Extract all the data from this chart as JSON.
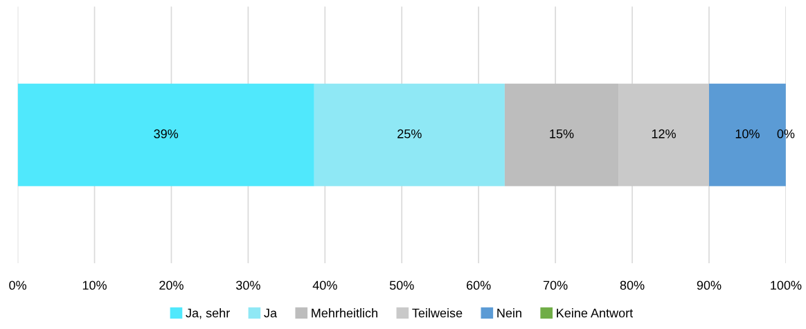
{
  "chart_data": {
    "type": "bar",
    "orientation": "horizontal",
    "stacked": true,
    "categories": [
      null
    ],
    "series": [
      {
        "name": "Ja, sehr",
        "color": "#50e8fc",
        "values": [
          38.6
        ],
        "value_labels": [
          "39%"
        ]
      },
      {
        "name": "Ja",
        "color": "#8fe8f5",
        "values": [
          24.8
        ],
        "value_labels": [
          "25%"
        ]
      },
      {
        "name": "Mehrheitlich",
        "color": "#bdbdbd",
        "values": [
          14.8
        ],
        "value_labels": [
          "15%"
        ]
      },
      {
        "name": "Teilweise",
        "color": "#c9c9c9",
        "values": [
          11.8
        ],
        "value_labels": [
          "12%"
        ]
      },
      {
        "name": "Nein",
        "color": "#5b9bd5",
        "values": [
          10.0
        ],
        "value_labels": [
          "10%"
        ]
      },
      {
        "name": "Keine Antwort",
        "color": "#70ad47",
        "values": [
          0
        ],
        "value_labels": [
          "0%"
        ]
      }
    ],
    "xlim": [
      0,
      100
    ],
    "xticks": [
      {
        "value": 0,
        "label": "0%"
      },
      {
        "value": 10,
        "label": "10%"
      },
      {
        "value": 20,
        "label": "20%"
      },
      {
        "value": 30,
        "label": "30%"
      },
      {
        "value": 40,
        "label": "40%"
      },
      {
        "value": 50,
        "label": "50%"
      },
      {
        "value": 60,
        "label": "60%"
      },
      {
        "value": 70,
        "label": "70%"
      },
      {
        "value": 80,
        "label": "80%"
      },
      {
        "value": 90,
        "label": "90%"
      },
      {
        "value": 100,
        "label": "100%"
      }
    ],
    "grid": "x",
    "legend": "bottom"
  }
}
